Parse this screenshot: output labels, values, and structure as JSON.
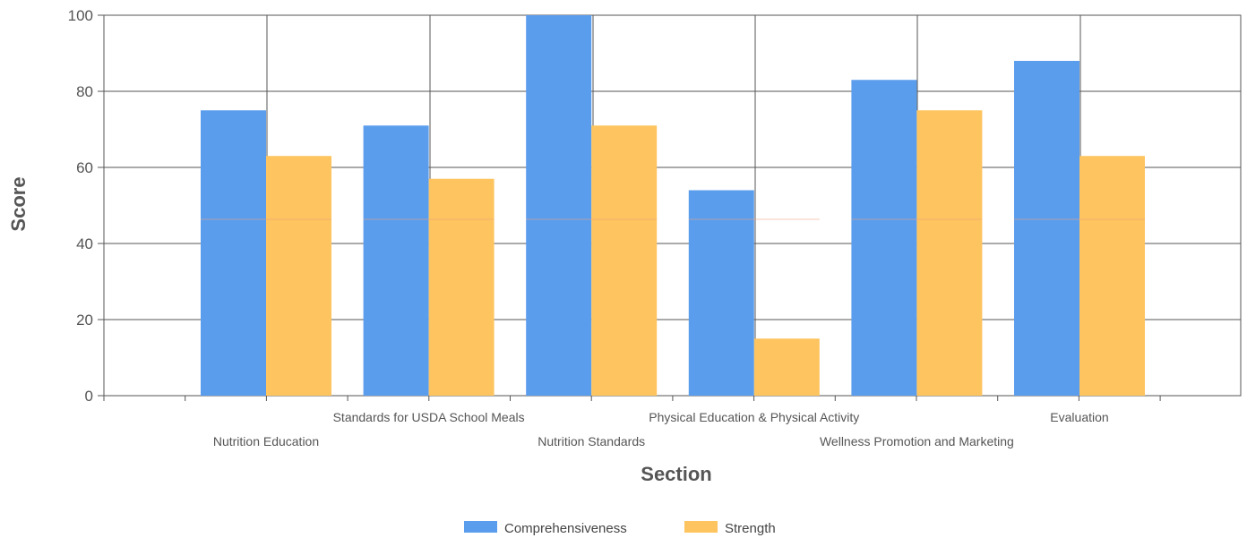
{
  "chart_data": {
    "type": "bar",
    "categories": [
      "Nutrition Education",
      "Standards for USDA School Meals",
      "Nutrition Standards",
      "Physical Education & Physical Activity",
      "Wellness Promotion and Marketing",
      "Evaluation"
    ],
    "series": [
      {
        "name": "Comprehensiveness",
        "color": "#5b9ded",
        "values": [
          75,
          71,
          100,
          54,
          83,
          88
        ]
      },
      {
        "name": "Strength",
        "color": "#fdc45f",
        "values": [
          63,
          57,
          71,
          15,
          75,
          63
        ]
      }
    ],
    "xlabel": "Section",
    "ylabel": "Score",
    "ylim": [
      0,
      100
    ],
    "yticks": [
      "0",
      "20",
      "40",
      "60",
      "80",
      "100"
    ],
    "grid": true,
    "legend_position": "bottom"
  }
}
